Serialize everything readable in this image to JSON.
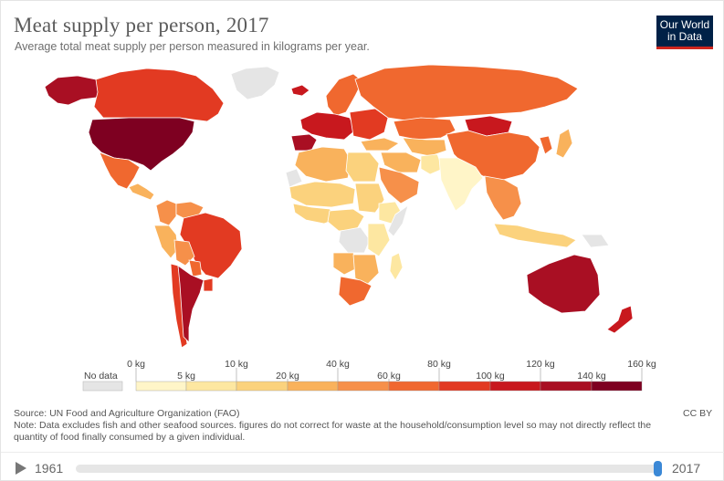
{
  "header": {
    "title": "Meat supply per person, 2017",
    "subtitle": "Average total meat supply per person measured in kilograms per year."
  },
  "logo": {
    "line1": "Our World",
    "line2": "in Data",
    "bg": "#002147",
    "accent": "#ce261e"
  },
  "map": {
    "colors": {
      "nodata": "#e5e5e5",
      "ocean": "#ffffff",
      "bin0": "#fff5c8",
      "bin1": "#fde7a1",
      "bin2": "#fbd27d",
      "bin3": "#f9b25c",
      "bin4": "#f6904a",
      "bin5": "#f0682f",
      "bin6": "#e23a22",
      "bin7": "#c8181e",
      "bin8": "#a90f23",
      "bin9": "#7e0021"
    },
    "regions": [
      {
        "name": "Greenland",
        "bin": "nodata"
      },
      {
        "name": "Alaska",
        "bin": "bin8"
      },
      {
        "name": "Canada",
        "bin": "bin6"
      },
      {
        "name": "United States",
        "bin": "bin9"
      },
      {
        "name": "Mexico",
        "bin": "bin5"
      },
      {
        "name": "Central America",
        "bin": "bin3"
      },
      {
        "name": "Colombia",
        "bin": "bin4"
      },
      {
        "name": "Venezuela",
        "bin": "bin4"
      },
      {
        "name": "Peru",
        "bin": "bin3"
      },
      {
        "name": "Bolivia",
        "bin": "bin4"
      },
      {
        "name": "Brazil",
        "bin": "bin6"
      },
      {
        "name": "Paraguay",
        "bin": "bin5"
      },
      {
        "name": "Chile",
        "bin": "bin6"
      },
      {
        "name": "Argentina",
        "bin": "bin8"
      },
      {
        "name": "Uruguay",
        "bin": "bin6"
      },
      {
        "name": "Iceland",
        "bin": "bin7"
      },
      {
        "name": "Scandinavia",
        "bin": "bin5"
      },
      {
        "name": "Western Europe",
        "bin": "bin7"
      },
      {
        "name": "Spain and Portugal",
        "bin": "bin8"
      },
      {
        "name": "Eastern Europe",
        "bin": "bin6"
      },
      {
        "name": "Russia",
        "bin": "bin5"
      },
      {
        "name": "Kazakhstan",
        "bin": "bin5"
      },
      {
        "name": "Mongolia",
        "bin": "bin7"
      },
      {
        "name": "China",
        "bin": "bin5"
      },
      {
        "name": "Central Asia",
        "bin": "bin3"
      },
      {
        "name": "Middle East",
        "bin": "bin3"
      },
      {
        "name": "Turkey",
        "bin": "bin3"
      },
      {
        "name": "Arabian Peninsula",
        "bin": "bin4"
      },
      {
        "name": "India",
        "bin": "bin0"
      },
      {
        "name": "Pakistan",
        "bin": "bin1"
      },
      {
        "name": "Southeast Asia",
        "bin": "bin4"
      },
      {
        "name": "Indonesia",
        "bin": "bin2"
      },
      {
        "name": "Papua New Guinea",
        "bin": "nodata"
      },
      {
        "name": "Korea",
        "bin": "bin5"
      },
      {
        "name": "Japan",
        "bin": "bin3"
      },
      {
        "name": "North Africa",
        "bin": "bin3"
      },
      {
        "name": "Libya",
        "bin": "bin2"
      },
      {
        "name": "Sahel",
        "bin": "bin2"
      },
      {
        "name": "West Africa",
        "bin": "bin2"
      },
      {
        "name": "Western Sahara",
        "bin": "nodata"
      },
      {
        "name": "Sudan",
        "bin": "bin2"
      },
      {
        "name": "Ethiopia",
        "bin": "bin1"
      },
      {
        "name": "Somalia",
        "bin": "nodata"
      },
      {
        "name": "Central Africa",
        "bin": "bin2"
      },
      {
        "name": "DR Congo",
        "bin": "nodata"
      },
      {
        "name": "East Africa",
        "bin": "bin1"
      },
      {
        "name": "Angola",
        "bin": "bin3"
      },
      {
        "name": "Southern Africa",
        "bin": "bin3"
      },
      {
        "name": "South Africa",
        "bin": "bin5"
      },
      {
        "name": "Madagascar",
        "bin": "bin1"
      },
      {
        "name": "Australia",
        "bin": "bin8"
      },
      {
        "name": "New Zealand",
        "bin": "bin7"
      }
    ]
  },
  "legend": {
    "nodata_label": "No data",
    "upper_ticks": [
      "0 kg",
      "10 kg",
      "40 kg",
      "80 kg",
      "120 kg",
      "160 kg"
    ],
    "lower_ticks": [
      "5 kg",
      "20 kg",
      "60 kg",
      "100 kg",
      "140 kg"
    ]
  },
  "footer": {
    "source": "Source: UN Food and Agriculture Organization (FAO)",
    "note": "Note: Data excludes fish and other seafood sources. figures do not correct for waste at the household/consumption level so may not directly reflect the quantity of food finally consumed by a given individual.",
    "license": "CC BY"
  },
  "timeline": {
    "start_year": "1961",
    "end_year": "2017",
    "progress": 1.0,
    "track_color": "#e6e6e6",
    "handle_color": "#3b88d6"
  }
}
